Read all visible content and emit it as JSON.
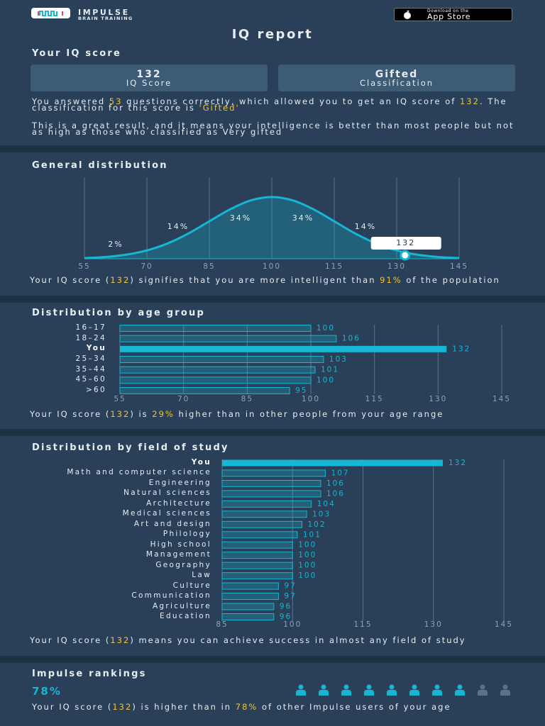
{
  "header": {
    "brand": "IMPULSE",
    "tagline": "BRAIN TRAINING",
    "store_small": "Download on the",
    "store_big": "App Store"
  },
  "title": "IQ report",
  "score": {
    "heading": "Your IQ score",
    "cards": [
      {
        "value": 132,
        "label": "IQ Score"
      },
      {
        "value": "Gifted",
        "label": "Classification"
      }
    ],
    "paragraphs": [
      [
        {
          "text": "You answered "
        },
        {
          "text": "53",
          "hl": true
        },
        {
          "text": " questions correctly, which allowed you to get an IQ score of "
        },
        {
          "text": "132",
          "hl": true
        },
        {
          "text": ". The classification for this score is "
        },
        {
          "text": "'Gifted'",
          "hl": true
        }
      ],
      [
        {
          "text": "This is a great result, and it means your intelligence is better than most people but not as high as those who classified as Very gifted"
        }
      ]
    ]
  },
  "chart_data": [
    {
      "type": "area",
      "title": "General distribution",
      "x": [
        55,
        60,
        65,
        70,
        75,
        80,
        85,
        90,
        95,
        100,
        105,
        110,
        115,
        120,
        125,
        130,
        135,
        140,
        145
      ],
      "values": [
        0.011,
        0.029,
        0.066,
        0.135,
        0.249,
        0.411,
        0.607,
        0.801,
        0.946,
        1,
        0.946,
        0.801,
        0.607,
        0.411,
        0.249,
        0.135,
        0.066,
        0.029,
        0.011
      ],
      "xlim": [
        55,
        145
      ],
      "xticks": [
        55,
        70,
        85,
        100,
        115,
        130,
        145
      ],
      "ylim": [
        0,
        1.32
      ],
      "grid": true,
      "color": "#17b6d3",
      "bands": {
        "values": [
          2,
          14,
          34,
          34,
          14
        ],
        "value_labels": [
          "2%",
          "14%",
          "34%",
          "34%",
          "14%"
        ]
      },
      "marker": {
        "value": 132
      }
    },
    {
      "type": "bar",
      "orientation": "horizontal",
      "title": "Distribution by age group",
      "categories": [
        "16–17",
        "18–24",
        "You",
        "25–34",
        "35–44",
        "45–60",
        ">60"
      ],
      "values": [
        100,
        106,
        132,
        103,
        101,
        100,
        95
      ],
      "xlim": [
        55,
        145
      ],
      "xticks": [
        55,
        70,
        85,
        100,
        115,
        130,
        145
      ],
      "grid": true,
      "color": "#17b6d3",
      "highlight_index": 2
    },
    {
      "type": "bar",
      "orientation": "horizontal",
      "title": "Distribution by field of study",
      "categories": [
        "You",
        "Math and computer science",
        "Engineering",
        "Natural sciences",
        "Architecture",
        "Medical sciences",
        "Art and design",
        "Philology",
        "High school",
        "Management",
        "Geography",
        "Law",
        "Culture",
        "Communication",
        "Agriculture",
        "Education"
      ],
      "values": [
        132,
        107,
        106,
        106,
        104,
        103,
        102,
        101,
        100,
        100,
        100,
        100,
        97,
        97,
        96,
        96
      ],
      "xlim": [
        85,
        145
      ],
      "xticks": [
        85,
        100,
        115,
        130,
        145
      ],
      "grid": true,
      "color": "#17b6d3",
      "highlight_index": 0
    }
  ],
  "notes": [
    [
      {
        "text": "Your IQ score ("
      },
      {
        "text": "132",
        "hl": true
      },
      {
        "text": ") signifies that you are more intelligent than "
      },
      {
        "text": "91%",
        "hl": true
      },
      {
        "text": " of the population"
      }
    ],
    [
      {
        "text": "Your IQ score ("
      },
      {
        "text": "132",
        "hl": true
      },
      {
        "text": ") is "
      },
      {
        "text": "29%",
        "hl": true
      },
      {
        "text": " higher than in other people from your age range"
      }
    ],
    [
      {
        "text": "Your IQ score ("
      },
      {
        "text": "132",
        "hl": true
      },
      {
        "text": ") means you can achieve success in almost any field of study"
      }
    ]
  ],
  "rankings": {
    "heading": "Impulse rankings",
    "value": "78%",
    "icons_total": 10,
    "icons_filled": 8,
    "sentence": [
      {
        "text": "Your IQ score ("
      },
      {
        "text": "132",
        "hl": true
      },
      {
        "text": ") is higher than in "
      },
      {
        "text": "78%",
        "hl": true
      },
      {
        "text": " of other Impulse users of your age"
      }
    ]
  }
}
